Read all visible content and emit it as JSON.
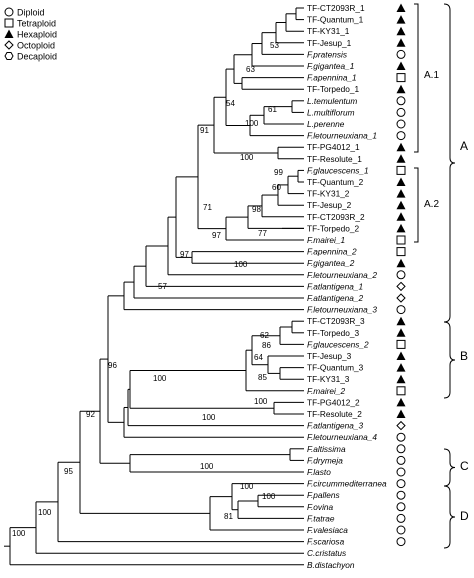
{
  "legend": [
    {
      "symbol": "circle",
      "label": "Diploid"
    },
    {
      "symbol": "square",
      "label": "Tetraploid"
    },
    {
      "symbol": "triangle",
      "label": "Hexaploid"
    },
    {
      "symbol": "diamond",
      "label": "Octoploid"
    },
    {
      "symbol": "hexagon",
      "label": "Decaploid"
    }
  ],
  "taxa": [
    {
      "name": "TF-CT2093R_1",
      "italic": false,
      "ploidy": "triangle"
    },
    {
      "name": "TF-Quantum_1",
      "italic": false,
      "ploidy": "triangle"
    },
    {
      "name": "TF-KY31_1",
      "italic": false,
      "ploidy": "triangle"
    },
    {
      "name": "TF-Jesup_1",
      "italic": false,
      "ploidy": "triangle"
    },
    {
      "name": "F.pratensis",
      "italic": true,
      "ploidy": "circle"
    },
    {
      "name": "F.gigantea_1",
      "italic": true,
      "ploidy": "triangle"
    },
    {
      "name": "F.apennina_1",
      "italic": true,
      "ploidy": "square"
    },
    {
      "name": "TF-Torpedo_1",
      "italic": false,
      "ploidy": "triangle"
    },
    {
      "name": "L.temulentum",
      "italic": true,
      "ploidy": "circle"
    },
    {
      "name": "L.multiflorum",
      "italic": true,
      "ploidy": "circle"
    },
    {
      "name": "L.perenne",
      "italic": true,
      "ploidy": "circle"
    },
    {
      "name": "F.letourneuxiana_1",
      "italic": true,
      "ploidy": "circle"
    },
    {
      "name": "TF-PG4012_1",
      "italic": false,
      "ploidy": "triangle"
    },
    {
      "name": "TF-Resolute_1",
      "italic": false,
      "ploidy": "triangle"
    },
    {
      "name": "F.glaucescens_1",
      "italic": true,
      "ploidy": "square"
    },
    {
      "name": "TF-Quantum_2",
      "italic": false,
      "ploidy": "triangle"
    },
    {
      "name": "TF-KY31_2",
      "italic": false,
      "ploidy": "triangle"
    },
    {
      "name": "TF-Jesup_2",
      "italic": false,
      "ploidy": "triangle"
    },
    {
      "name": "TF-CT2093R_2",
      "italic": false,
      "ploidy": "triangle"
    },
    {
      "name": "TF-Torpedo_2",
      "italic": false,
      "ploidy": "triangle"
    },
    {
      "name": "F.mairei_1",
      "italic": true,
      "ploidy": "square"
    },
    {
      "name": "F.apennina_2",
      "italic": true,
      "ploidy": "square"
    },
    {
      "name": "F.gigantea_2",
      "italic": true,
      "ploidy": "triangle"
    },
    {
      "name": "F.letourneuxiana_2",
      "italic": true,
      "ploidy": "open-circle"
    },
    {
      "name": "F.atlantigena_1",
      "italic": true,
      "ploidy": "diamond"
    },
    {
      "name": "F.atlantigena_2",
      "italic": true,
      "ploidy": "diamond"
    },
    {
      "name": "F.letourneuxiana_3",
      "italic": true,
      "ploidy": "circle"
    },
    {
      "name": "TF-CT2093R_3",
      "italic": false,
      "ploidy": "triangle"
    },
    {
      "name": "TF-Torpedo_3",
      "italic": false,
      "ploidy": "triangle"
    },
    {
      "name": "F.glaucescens_2",
      "italic": true,
      "ploidy": "square"
    },
    {
      "name": "TF-Jesup_3",
      "italic": false,
      "ploidy": "triangle"
    },
    {
      "name": "TF-Quantum_3",
      "italic": false,
      "ploidy": "triangle"
    },
    {
      "name": "TF-KY31_3",
      "italic": false,
      "ploidy": "triangle"
    },
    {
      "name": "F.mairei_2",
      "italic": true,
      "ploidy": "square"
    },
    {
      "name": "TF-PG4012_2",
      "italic": false,
      "ploidy": "triangle"
    },
    {
      "name": "TF-Resolute_2",
      "italic": false,
      "ploidy": "triangle"
    },
    {
      "name": "F.atlantigena_3",
      "italic": true,
      "ploidy": "diamond"
    },
    {
      "name": "F.letourneuxiana_4",
      "italic": true,
      "ploidy": "circle"
    },
    {
      "name": "F.altissima",
      "italic": true,
      "ploidy": "circle"
    },
    {
      "name": "F.drymeja",
      "italic": true,
      "ploidy": "circle"
    },
    {
      "name": "F.lasto",
      "italic": true,
      "ploidy": "circle"
    },
    {
      "name": "F.circummediterranea",
      "italic": true,
      "ploidy": "circle"
    },
    {
      "name": "F.pallens",
      "italic": true,
      "ploidy": "circle"
    },
    {
      "name": "F.ovina",
      "italic": true,
      "ploidy": "circle"
    },
    {
      "name": "F.tatrae",
      "italic": true,
      "ploidy": "circle"
    },
    {
      "name": "F.valesiaca",
      "italic": true,
      "ploidy": "circle"
    },
    {
      "name": "F.scariosa",
      "italic": true,
      "ploidy": "circle"
    },
    {
      "name": "C.cristatus",
      "italic": true,
      "ploidy": ""
    },
    {
      "name": "B.distachyon",
      "italic": true,
      "ploidy": ""
    }
  ],
  "bootstrap": [
    "53",
    "63",
    "54",
    "61",
    "100",
    "91",
    "100",
    "99",
    "60",
    "98",
    "77",
    "71",
    "97",
    "97",
    "100",
    "57",
    "62",
    "86",
    "64",
    "85",
    "100",
    "96",
    "100",
    "100",
    "92",
    "100",
    "95",
    "100",
    "81",
    "100",
    "100",
    "100"
  ],
  "clade_labels": [
    "A.1",
    "A.2",
    "A",
    "B",
    "C",
    "D"
  ]
}
